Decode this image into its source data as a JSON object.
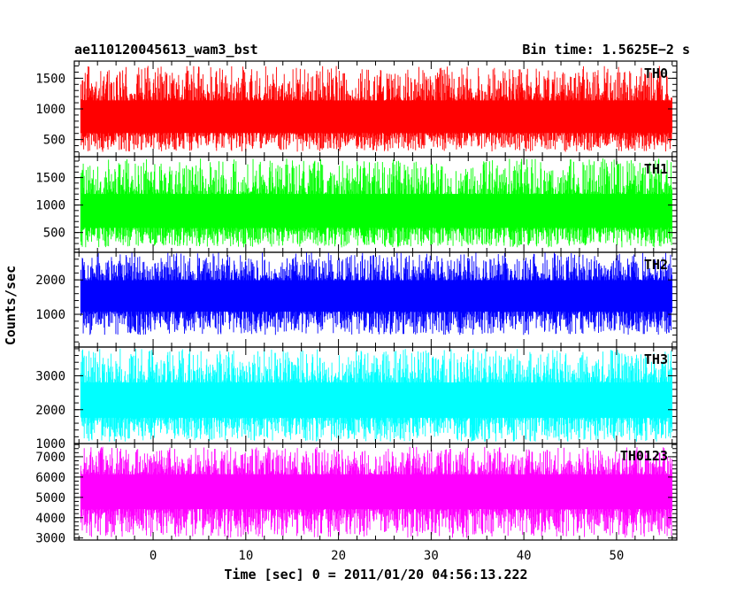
{
  "header": {
    "title": "ae110120045613_wam3_bst",
    "bin_time": "Bin time: 1.5625E−2 s"
  },
  "chart_data": {
    "type": "line",
    "xlabel": "Time [sec] 0 = 2011/01/20 04:56:13.222",
    "ylabel": "Counts/sec",
    "xlim": [
      -8.5,
      56.5
    ],
    "x_data_range": [
      -7.8,
      56.0
    ],
    "x_ticks": [
      0,
      10,
      20,
      30,
      40,
      50
    ],
    "grid": false,
    "legend": "none",
    "panels": [
      {
        "name": "TH0",
        "color": "#ff0000",
        "ylim": [
          220,
          1780
        ],
        "y_ticks": [
          500,
          1000,
          1500
        ],
        "x": [
          -7.8,
          -2,
          5,
          15,
          25,
          35,
          45,
          56
        ],
        "values": [
          800,
          780,
          820,
          800,
          790,
          810,
          800,
          800
        ],
        "band": [
          300,
          1700
        ]
      },
      {
        "name": "TH1",
        "color": "#00ff00",
        "ylim": [
          140,
          1880
        ],
        "y_ticks": [
          500,
          1000,
          1500
        ],
        "x": [
          -7.8,
          -2,
          5,
          15,
          25,
          35,
          45,
          56
        ],
        "values": [
          800,
          820,
          790,
          810,
          800,
          790,
          820,
          800
        ],
        "band": [
          230,
          1850
        ]
      },
      {
        "name": "TH2",
        "color": "#0000ff",
        "ylim": [
          50,
          2800
        ],
        "y_ticks": [
          1000,
          2000
        ],
        "x": [
          -7.8,
          -2,
          5,
          15,
          25,
          35,
          45,
          56
        ],
        "values": [
          1500,
          1480,
          1520,
          1500,
          1490,
          1510,
          1500,
          1500
        ],
        "band": [
          400,
          2800
        ]
      },
      {
        "name": "TH3",
        "color": "#00ffff",
        "ylim": [
          1000,
          3850
        ],
        "y_ticks": [
          1000,
          2000,
          3000
        ],
        "x": [
          -7.8,
          -2,
          5,
          15,
          25,
          35,
          45,
          56
        ],
        "values": [
          2200,
          2180,
          2220,
          2200,
          2190,
          2210,
          2200,
          2200
        ],
        "band": [
          1050,
          3800
        ]
      },
      {
        "name": "TH0123",
        "color": "#ff00ff",
        "ylim": [
          2900,
          7650
        ],
        "y_ticks": [
          3000,
          4000,
          5000,
          6000,
          7000
        ],
        "x": [
          -7.8,
          -2,
          5,
          15,
          25,
          35,
          45,
          56
        ],
        "values": [
          5300,
          5280,
          5320,
          5300,
          5290,
          5310,
          5300,
          5300
        ],
        "band": [
          3000,
          7500
        ]
      }
    ]
  }
}
